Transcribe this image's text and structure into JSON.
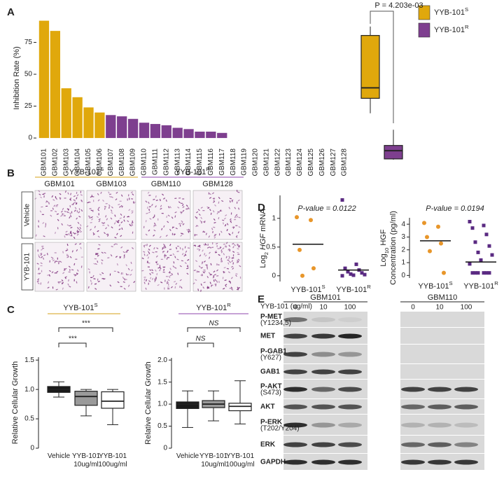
{
  "panel_labels": [
    "A",
    "B",
    "C",
    "D",
    "E"
  ],
  "chart_data": [
    {
      "type": "bar",
      "y_label": "Inhibition Rate (%)",
      "categories": [
        "GBM101",
        "GBM102",
        "GBM103",
        "GBM104",
        "GBM105",
        "GBM106",
        "GBM107",
        "GBM108",
        "GBM109",
        "GBM110",
        "GBM111",
        "GBM112",
        "GBM113",
        "GBM114",
        "GBM115",
        "GBM116",
        "GBM117",
        "GBM118",
        "GBM119",
        "GBM120",
        "GBM121",
        "GBM122",
        "GBM123",
        "GBM124",
        "GBM125",
        "GBM126",
        "GBM127",
        "GBM128"
      ],
      "series": [
        {
          "name": "YYB-101",
          "name_sup": "S",
          "color": "#E0A80C",
          "values": [
            92,
            84,
            39,
            32,
            24,
            20,
            null,
            null,
            null,
            null,
            null,
            null,
            null,
            null,
            null,
            null,
            null,
            null,
            null,
            null,
            null,
            null,
            null,
            null,
            null,
            null,
            null,
            null
          ]
        },
        {
          "name": "YYB-101",
          "name_sup": "R",
          "color": "#7E3F8F",
          "values": [
            null,
            null,
            null,
            null,
            null,
            null,
            18,
            17,
            15,
            12,
            11,
            10,
            8,
            7,
            5,
            5,
            4,
            0,
            0,
            0,
            0,
            0,
            0,
            0,
            0,
            0,
            0,
            0
          ]
        }
      ],
      "ylim": [
        -6,
        100
      ],
      "yticks": [
        0,
        25,
        50,
        75
      ]
    },
    {
      "type": "box",
      "annotation": "P = 4.203e-03",
      "ylim": [
        0,
        95
      ],
      "series": [
        {
          "color": "#E0A80C",
          "min": 31,
          "q1": 41,
          "median": 48,
          "q3": 83,
          "max": 89
        },
        {
          "color": "#7E3F8F",
          "min": 0,
          "q1": 0.5,
          "median": 6,
          "q3": 9.5,
          "max": 20
        }
      ]
    },
    {
      "type": "box",
      "title": {
        "text": "YYB-101",
        "sup": "S"
      },
      "title_color": "#D4A017",
      "y_label": "Relative Cellular Growth",
      "categories": [
        "Vehicle",
        "YYB-101 10ug/ml",
        "YYB-101 100ug/ml"
      ],
      "series": [
        {
          "color": "#1a1a1a",
          "min": 0.87,
          "q1": 0.95,
          "median": 1.0,
          "q3": 1.05,
          "max": 1.13
        },
        {
          "color": "#9a9a9a",
          "min": 0.55,
          "q1": 0.73,
          "median": 0.88,
          "q3": 0.97,
          "max": 1.0
        },
        {
          "color": "#ffffff",
          "min": 0.4,
          "q1": 0.68,
          "median": 0.8,
          "q3": 0.96,
          "max": 1.0
        }
      ],
      "annotations": [
        "***",
        "***"
      ],
      "ylim": [
        0,
        1.55
      ],
      "yticks": [
        0,
        0.5,
        {
          "value": 1,
          "label": "1.0"
        },
        1.5
      ]
    },
    {
      "type": "box",
      "title": {
        "text": "YYB-101",
        "sup": "R"
      },
      "title_color": "#8E44AD",
      "y_label": "Relative Cellular Growth",
      "categories": [
        "Vehicle",
        "YYB-101 10ug/ml",
        "YYB-101 100ug/ml"
      ],
      "series": [
        {
          "color": "#1a1a1a",
          "min": 0.47,
          "q1": 0.9,
          "median": 1.0,
          "q3": 1.05,
          "max": 1.3
        },
        {
          "color": "#9a9a9a",
          "min": 0.62,
          "q1": 0.92,
          "median": 1.0,
          "q3": 1.08,
          "max": 1.3
        },
        {
          "color": "#ffffff",
          "min": 0.55,
          "q1": 0.85,
          "median": 0.95,
          "q3": 1.02,
          "max": 1.53
        }
      ],
      "annotations": [
        "NS",
        "NS"
      ],
      "ylim": [
        0,
        2.05
      ],
      "yticks": [
        0,
        0.5,
        {
          "value": 1,
          "label": "1.0"
        },
        1.5,
        {
          "value": 2,
          "label": "2.0"
        }
      ]
    },
    {
      "type": "strip",
      "title": "P-value = 0.0122",
      "y_label": [
        "Log",
        "2",
        "HGF",
        "mRNA"
      ],
      "categories": [
        {
          "text": "YYB-101",
          "sup": "S"
        },
        {
          "text": "YYB-101",
          "sup": "R"
        }
      ],
      "series": [
        {
          "color": "#E8962A",
          "values": [
            1.02,
            0.97,
            0.45,
            0.13,
            0.0
          ],
          "mean": 0.55
        },
        {
          "color": "#5A2A82",
          "values": [
            1.32,
            0.2,
            0.13,
            0.1,
            0.07,
            0.05,
            0.03,
            0.02,
            0.01,
            0.0
          ],
          "mean": 0.1
        }
      ],
      "ylim": [
        -0.1,
        1.4
      ],
      "yticks": [
        0,
        0.5,
        1
      ]
    },
    {
      "type": "strip",
      "title": "P-value = 0.0194",
      "y_label": [
        "Log",
        "10",
        "HGF",
        "Concentration (pg/ml)"
      ],
      "categories": [
        {
          "text": "YYB-101",
          "sup": "S"
        },
        {
          "text": "YYB-101",
          "sup": "R"
        }
      ],
      "series": [
        {
          "color": "#E8962A",
          "values": [
            4.1,
            3.8,
            3.0,
            2.5,
            1.9,
            0.2
          ],
          "mean": 2.7
        },
        {
          "color": "#5A2A82",
          "values": [
            4.2,
            3.9,
            3.7,
            3.2,
            2.6,
            2.3,
            1.8,
            1.6,
            1.2,
            0.9,
            0.2,
            0.2,
            0.2,
            0.2,
            0.2,
            0.2
          ],
          "mean": 1.05
        }
      ],
      "ylim": [
        -0.2,
        4.5
      ],
      "yticks": [
        0,
        1,
        2,
        3,
        4
      ]
    }
  ],
  "micrographs": {
    "groups": [
      {
        "text": "YYB-101",
        "sup": "S",
        "color": "#D4A017"
      },
      {
        "text": "YYB-101",
        "sup": "R",
        "color": "#8E44AD"
      }
    ],
    "columns": [
      "GBM101",
      "GBM103",
      "GBM110",
      "GBM128"
    ],
    "rows": [
      "Vehicle",
      "YYB-101"
    ]
  },
  "western_blot": {
    "treatment_label": "YYB-101 (ug/ml)",
    "cell_lines": [
      {
        "name": "GBM101",
        "doses": [
          "0",
          "10",
          "100"
        ]
      },
      {
        "name": "GBM110",
        "doses": [
          "0",
          "10",
          "100"
        ]
      }
    ],
    "rows": [
      {
        "name": "P-MET",
        "site": "(Y1234,5)"
      },
      {
        "name": "MET"
      },
      {
        "name": "P-GAB1",
        "site": "(Y627)"
      },
      {
        "name": "GAB1"
      },
      {
        "name": "P-AKT",
        "site": "(S473)"
      },
      {
        "name": "AKT"
      },
      {
        "name": "P-ERK",
        "site": "(T202/Y204)"
      },
      {
        "name": "ERK"
      },
      {
        "name": "GAPDH"
      }
    ]
  }
}
